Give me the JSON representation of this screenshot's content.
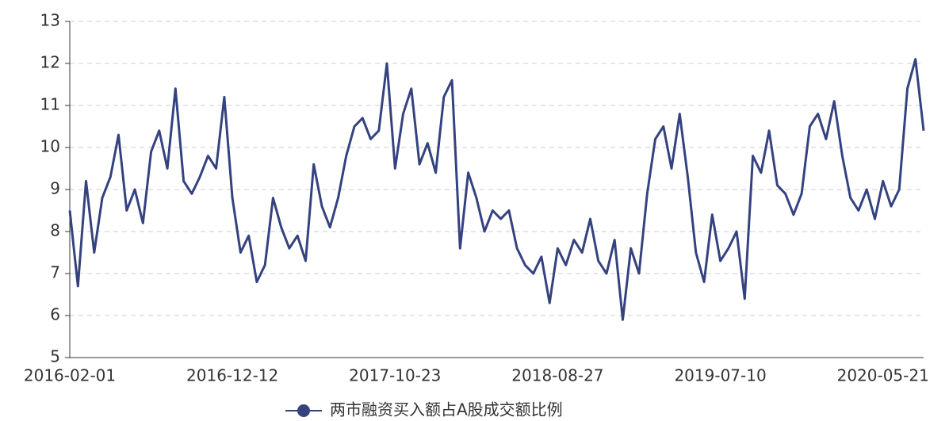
{
  "chart_data": {
    "type": "line",
    "categories": [
      "2016-02-01",
      null,
      null,
      null,
      null,
      null,
      null,
      null,
      null,
      null,
      null,
      null,
      null,
      null,
      null,
      null,
      null,
      null,
      null,
      null,
      "2016-12-12",
      null,
      null,
      null,
      null,
      null,
      null,
      null,
      null,
      null,
      null,
      null,
      null,
      null,
      null,
      null,
      null,
      null,
      null,
      null,
      "2017-10-23",
      null,
      null,
      null,
      null,
      null,
      null,
      null,
      null,
      null,
      null,
      null,
      null,
      null,
      null,
      null,
      null,
      null,
      null,
      null,
      "2018-08-27",
      null,
      null,
      null,
      null,
      null,
      null,
      null,
      null,
      null,
      null,
      null,
      null,
      null,
      null,
      null,
      null,
      null,
      null,
      null,
      "2019-07-10",
      null,
      null,
      null,
      null,
      null,
      null,
      null,
      null,
      null,
      null,
      null,
      null,
      null,
      null,
      null,
      null,
      null,
      null,
      null,
      "2020-05-21",
      null,
      null,
      null,
      null,
      null
    ],
    "series": [
      {
        "name": "两市融资买入额占A股成交额比例",
        "color": "#34427f",
        "values": [
          8.5,
          6.7,
          9.2,
          7.5,
          8.8,
          9.3,
          10.3,
          8.5,
          9.0,
          8.2,
          9.9,
          10.4,
          9.5,
          11.4,
          9.2,
          8.9,
          9.3,
          9.8,
          9.5,
          11.2,
          8.8,
          7.5,
          7.9,
          6.8,
          7.2,
          8.8,
          8.1,
          7.6,
          7.9,
          7.3,
          9.6,
          8.6,
          8.1,
          8.8,
          9.8,
          10.5,
          10.7,
          10.2,
          10.4,
          12.0,
          9.5,
          10.8,
          11.4,
          9.6,
          10.1,
          9.4,
          11.2,
          11.6,
          7.6,
          9.4,
          8.8,
          8.0,
          8.5,
          8.3,
          8.5,
          7.6,
          7.2,
          7.0,
          7.4,
          6.3,
          7.6,
          7.2,
          7.8,
          7.5,
          8.3,
          7.3,
          7.0,
          7.8,
          5.9,
          7.6,
          7.0,
          8.9,
          10.2,
          10.5,
          9.5,
          10.8,
          9.3,
          7.5,
          6.8,
          8.4,
          7.3,
          7.6,
          8.0,
          6.4,
          9.8,
          9.4,
          10.4,
          9.1,
          8.9,
          8.4,
          8.9,
          10.5,
          10.8,
          10.2,
          11.1,
          9.8,
          8.8,
          8.5,
          9.0,
          8.3,
          9.2,
          8.6,
          9.0,
          11.4,
          12.1,
          10.4
        ]
      }
    ],
    "ylim": [
      5,
      13
    ],
    "yticks": [
      5,
      6,
      7,
      8,
      9,
      10,
      11,
      12,
      13
    ],
    "grid": true
  }
}
